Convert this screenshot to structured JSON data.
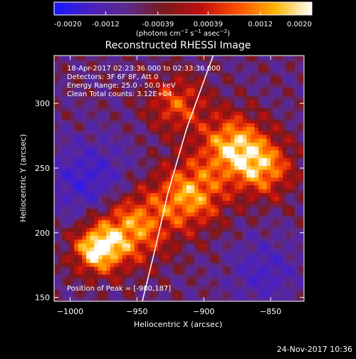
{
  "colorbar": {
    "ticks": [
      "-0.0020",
      "-0.0012",
      "-0.00039",
      "0.00039",
      "0.0012",
      "0.0020"
    ],
    "tick_values": [
      -0.002,
      -0.0012,
      -0.00039,
      0.00039,
      0.0012,
      0.002
    ],
    "range": [
      -0.002,
      0.002
    ],
    "units_prefix": "(photons cm",
    "units_exp1": "−2",
    "units_mid1": " s",
    "units_exp2": "−1",
    "units_mid2": " asec",
    "units_exp3": "−2",
    "units_suffix": ")",
    "colors": [
      "#1818ff",
      "#4a20c0",
      "#5d2a8a",
      "#7a1818",
      "#c01010",
      "#ff5000",
      "#ffb400",
      "#ffffff"
    ]
  },
  "chart_data": {
    "type": "heatmap",
    "title": "Reconstructed RHESSI Image",
    "xlabel": "Heliocentric X (arcsec)",
    "ylabel": "Heliocentric Y (arcsec)",
    "xlim": [
      -1012,
      -825
    ],
    "ylim": [
      147,
      337
    ],
    "xticks": [
      -1000,
      -950,
      -900,
      -850
    ],
    "xtick_labels": [
      "−1000",
      "−950",
      "−900",
      "−850"
    ],
    "yticks": [
      150,
      200,
      250,
      300
    ],
    "ytick_labels": [
      "150",
      "200",
      "250",
      "300"
    ],
    "limb_points": [
      [
        -946,
        147
      ],
      [
        -937,
        185
      ],
      [
        -927,
        230
      ],
      [
        -913,
        280
      ],
      [
        -899,
        320
      ],
      [
        -893,
        337
      ]
    ],
    "bright_regions": [
      {
        "x": -980,
        "y": 187,
        "strength": 1.0,
        "size": 18
      },
      {
        "x": -955,
        "y": 205,
        "strength": 0.85,
        "size": 28
      },
      {
        "x": -910,
        "y": 230,
        "strength": 0.85,
        "size": 26
      },
      {
        "x": -878,
        "y": 268,
        "strength": 0.9,
        "size": 24
      },
      {
        "x": -855,
        "y": 250,
        "strength": 0.75,
        "size": 22
      },
      {
        "x": -920,
        "y": 300,
        "strength": 0.6,
        "size": 22
      }
    ],
    "dim_regions": [
      {
        "x": -985,
        "y": 240,
        "strength": -0.55,
        "size": 30
      },
      {
        "x": -855,
        "y": 170,
        "strength": -0.4,
        "size": 25
      }
    ],
    "annotations": {
      "time": "18-Apr-2017 02:23:36.000 to 02:33:36.000",
      "detectors": "Detectors: 3F 6F 8F, Att 0",
      "energy": "Energy Range: 25.0 - 50.0 keV",
      "method": "Clean    Total counts: 3.12E+04",
      "peak": "Position of Peak = [-980,187]"
    }
  },
  "footer": {
    "date": "24-Nov-2017 10:36"
  }
}
